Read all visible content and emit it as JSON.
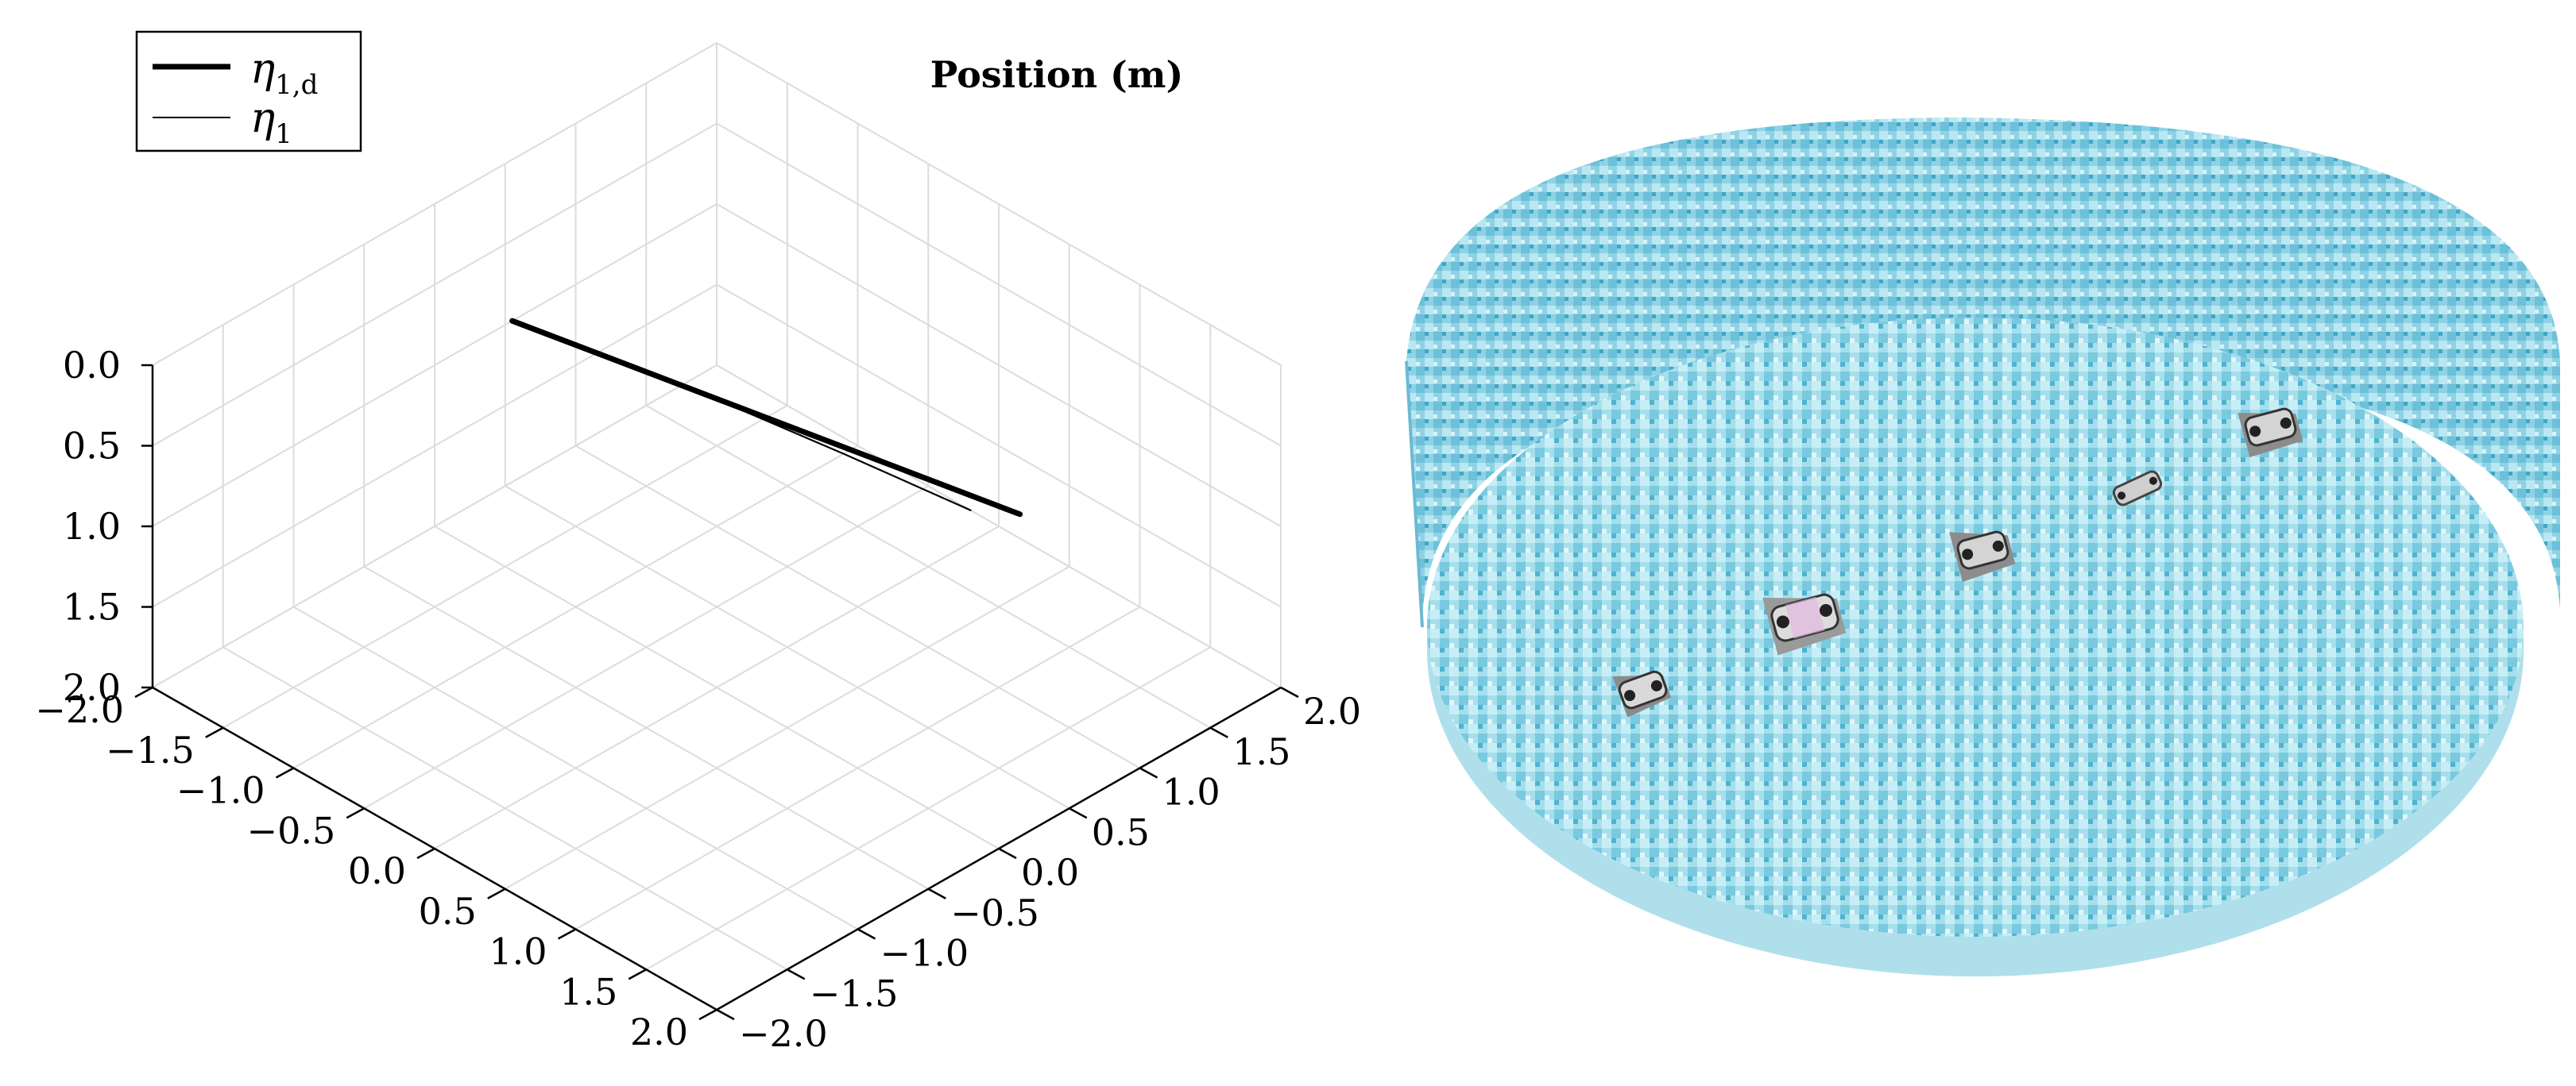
{
  "chart_data": {
    "type": "line3d",
    "title": "Position (m)",
    "axes": {
      "x": {
        "ticks": [
          "−2.0",
          "−1.5",
          "−1.0",
          "−0.5",
          "0.0",
          "0.5",
          "1.0",
          "1.5",
          "2.0"
        ],
        "range": [
          -2.0,
          2.0
        ]
      },
      "y": {
        "ticks": [
          "−2.0",
          "−1.5",
          "−1.0",
          "−0.5",
          "0.0",
          "0.5",
          "1.0",
          "1.5",
          "2.0"
        ],
        "range": [
          -2.0,
          2.0
        ]
      },
      "z": {
        "ticks": [
          "0.0",
          "0.5",
          "1.0",
          "1.5",
          "2.0"
        ],
        "range": [
          0.0,
          2.0
        ],
        "inverted": true
      }
    },
    "grid": true,
    "legend": {
      "position": "top-left"
    },
    "series": [
      {
        "name": "η",
        "subscript": "1,d",
        "style": "thick",
        "points": [
          [
            -1.0,
            -0.45,
            0.0
          ],
          [
            2.0,
            0.15,
            0.0
          ]
        ]
      },
      {
        "name": "η",
        "subscript": "1",
        "style": "thin",
        "points": [
          [
            -1.0,
            -0.45,
            0.0
          ],
          [
            0.3,
            -0.2,
            0.0
          ],
          [
            1.0,
            -0.1,
            0.0
          ],
          [
            1.8,
            0.0,
            0.0
          ]
        ]
      }
    ]
  },
  "scene": {
    "pool_colors": {
      "wall": "#7fcfe2",
      "floor": "#9ad9e8",
      "tile_dark": "#4fb6d3",
      "tile_light": "#c8eef5"
    },
    "vehicles": 5
  }
}
